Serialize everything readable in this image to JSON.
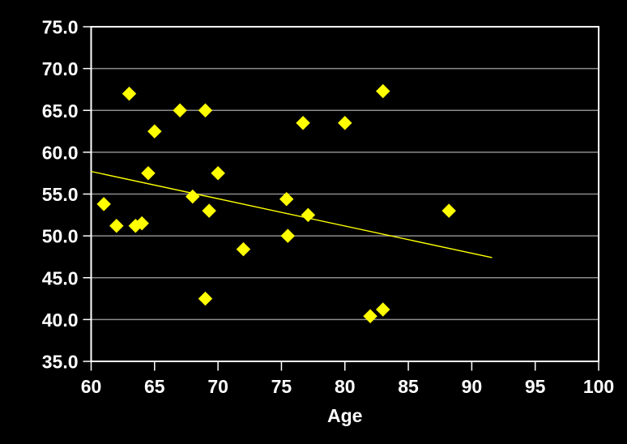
{
  "chart_data": {
    "type": "scatter",
    "title": "",
    "xlabel": "Age",
    "ylabel": "",
    "xlim": [
      60,
      100
    ],
    "ylim": [
      35,
      75
    ],
    "grid": "horizontal-only",
    "legend": "none",
    "x_ticks": [
      {
        "value": 60,
        "label": "60"
      },
      {
        "value": 65,
        "label": "65"
      },
      {
        "value": 70,
        "label": "70"
      },
      {
        "value": 75,
        "label": "75"
      },
      {
        "value": 80,
        "label": "80"
      },
      {
        "value": 85,
        "label": "85"
      },
      {
        "value": 90,
        "label": "90"
      },
      {
        "value": 95,
        "label": "95"
      },
      {
        "value": 100,
        "label": "100"
      }
    ],
    "y_ticks": [
      {
        "value": 75,
        "label": "75.0"
      },
      {
        "value": 70,
        "label": "70.0"
      },
      {
        "value": 65,
        "label": "65.0"
      },
      {
        "value": 60,
        "label": "60.0"
      },
      {
        "value": 55,
        "label": "55.0"
      },
      {
        "value": 50,
        "label": "50.0"
      },
      {
        "value": 45,
        "label": "45.0"
      },
      {
        "value": 40,
        "label": "40.0"
      },
      {
        "value": 35,
        "label": "35.0"
      }
    ],
    "points": [
      {
        "x": 61,
        "y": 53.8
      },
      {
        "x": 62,
        "y": 51.2
      },
      {
        "x": 63,
        "y": 67.0
      },
      {
        "x": 63.5,
        "y": 51.2
      },
      {
        "x": 64,
        "y": 51.5
      },
      {
        "x": 64.5,
        "y": 57.5
      },
      {
        "x": 65,
        "y": 62.5
      },
      {
        "x": 67,
        "y": 65.0
      },
      {
        "x": 68,
        "y": 54.7
      },
      {
        "x": 69,
        "y": 42.5
      },
      {
        "x": 69,
        "y": 65.0
      },
      {
        "x": 69.3,
        "y": 53.0
      },
      {
        "x": 70,
        "y": 57.5
      },
      {
        "x": 72,
        "y": 48.4
      },
      {
        "x": 75.4,
        "y": 54.4
      },
      {
        "x": 75.5,
        "y": 50.0
      },
      {
        "x": 76.7,
        "y": 63.5
      },
      {
        "x": 77.1,
        "y": 52.5
      },
      {
        "x": 80,
        "y": 63.5
      },
      {
        "x": 82,
        "y": 40.4
      },
      {
        "x": 83,
        "y": 41.2
      },
      {
        "x": 83,
        "y": 67.3
      },
      {
        "x": 88.2,
        "y": 53.0
      }
    ],
    "trendline": {
      "x1": 60,
      "y1": 57.7,
      "x2": 91.6,
      "y2": 47.4
    },
    "colors": {
      "background": "#000000",
      "marker": "#ffff00",
      "trendline": "#ffff00",
      "gridline": "#8c8c8c",
      "frame": "#ffffff",
      "text": "#ffffff"
    }
  }
}
